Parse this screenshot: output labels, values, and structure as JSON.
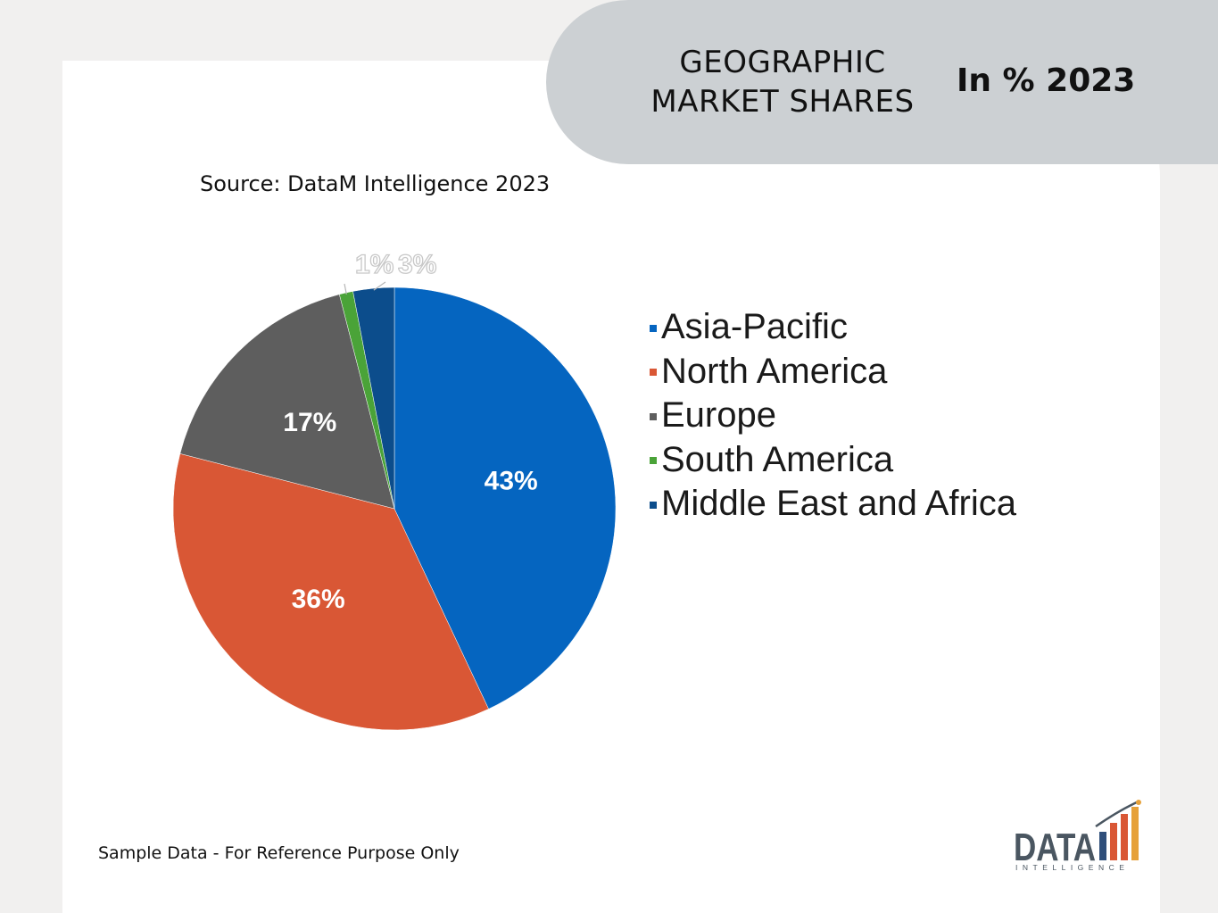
{
  "header": {
    "title": "GEOGRAPHIC\nMARKET SHARES",
    "subtitle": "In % 2023"
  },
  "source": "Source: DataM Intelligence 2023",
  "footer_note": "Sample Data - For Reference Purpose Only",
  "logo": {
    "name": "DATA",
    "tagline": "INTELLIGENCE"
  },
  "colors": {
    "asia_pacific": "#0565c0",
    "north_america": "#d95735",
    "europe": "#5e5e5e",
    "south_america": "#4aa338",
    "middle_east_africa": "#0c4d8c"
  },
  "chart_data": {
    "type": "pie",
    "start_angle_deg": 0,
    "direction": "clockwise",
    "categories": [
      "Asia-Pacific",
      "North America",
      "Europe",
      "South America",
      "Middle East and Africa"
    ],
    "values": [
      43,
      36,
      17,
      1,
      3
    ],
    "labels": [
      "43%",
      "36%",
      "17%",
      "1%",
      "3%"
    ],
    "legend_position": "right"
  }
}
